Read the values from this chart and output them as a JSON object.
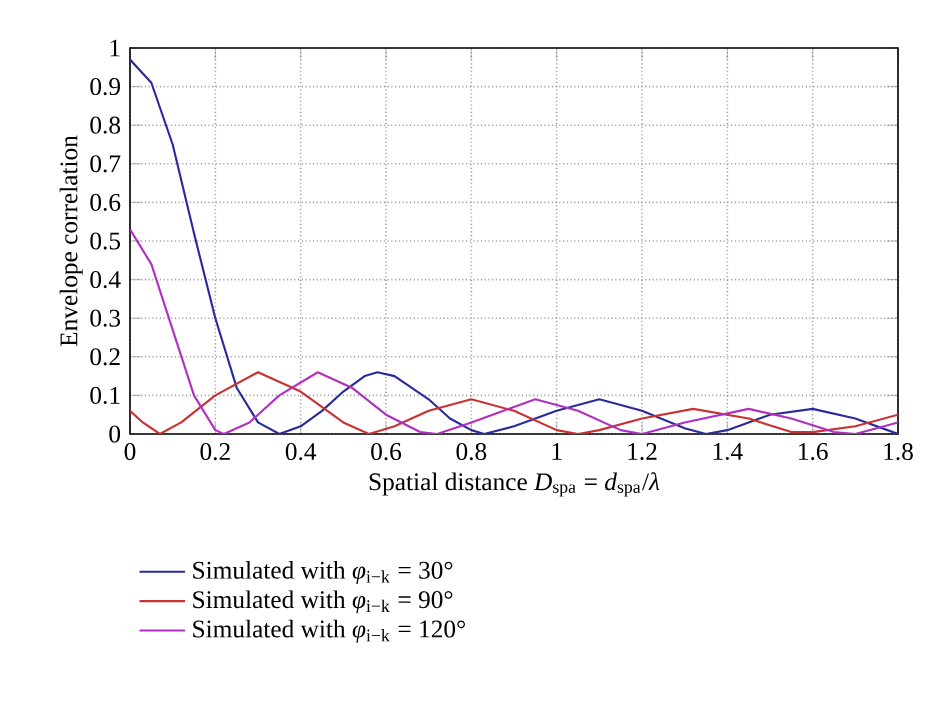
{
  "chart_data": {
    "type": "line",
    "xlabel": "Spatial distance *D*$_{spa}$ = *d*$_{spa}$/*λ*",
    "ylabel": "Envelope correlation",
    "xlim": [
      0,
      1.8
    ],
    "ylim": [
      0,
      1
    ],
    "xticks": [
      0,
      0.2,
      0.4,
      0.6,
      0.8,
      1,
      1.2,
      1.4,
      1.6,
      1.8
    ],
    "yticks": [
      0,
      0.1,
      0.2,
      0.3,
      0.4,
      0.5,
      0.6,
      0.7,
      0.8,
      0.9,
      1
    ],
    "grid": true,
    "legend": "bottom",
    "line_style": "solid",
    "marker": "none",
    "series": [
      {
        "name": "Simulated with *φ*$_{i−k}$ = 30°",
        "color": "#2a2a9c",
        "x": [
          0,
          0.05,
          0.1,
          0.15,
          0.2,
          0.25,
          0.3,
          0.35,
          0.4,
          0.45,
          0.5,
          0.55,
          0.58,
          0.62,
          0.7,
          0.75,
          0.8,
          0.83,
          0.9,
          1.0,
          1.1,
          1.2,
          1.3,
          1.35,
          1.4,
          1.5,
          1.6,
          1.7,
          1.8
        ],
        "values": [
          0.97,
          0.91,
          0.75,
          0.52,
          0.3,
          0.12,
          0.03,
          0,
          0.02,
          0.06,
          0.11,
          0.15,
          0.16,
          0.15,
          0.09,
          0.04,
          0.01,
          0,
          0.02,
          0.06,
          0.09,
          0.06,
          0.015,
          0,
          0.01,
          0.05,
          0.065,
          0.04,
          0
        ]
      },
      {
        "name": "Simulated with *φ*$_{i−k}$ = 90°",
        "color": "#c83232",
        "x": [
          0,
          0.03,
          0.07,
          0.12,
          0.2,
          0.3,
          0.4,
          0.5,
          0.56,
          0.62,
          0.7,
          0.8,
          0.9,
          1.0,
          1.05,
          1.1,
          1.2,
          1.32,
          1.45,
          1.55,
          1.6,
          1.7,
          1.8
        ],
        "values": [
          0.06,
          0.03,
          0,
          0.03,
          0.1,
          0.16,
          0.11,
          0.03,
          0,
          0.02,
          0.06,
          0.09,
          0.06,
          0.01,
          0,
          0.01,
          0.04,
          0.065,
          0.04,
          0.005,
          0.005,
          0.02,
          0.05
        ]
      },
      {
        "name": "Simulated with *φ*$_{i−k}$ = 120°",
        "color": "#b030c0",
        "x": [
          0,
          0.05,
          0.1,
          0.15,
          0.2,
          0.22,
          0.28,
          0.35,
          0.44,
          0.52,
          0.6,
          0.68,
          0.72,
          0.8,
          0.95,
          1.05,
          1.15,
          1.2,
          1.3,
          1.45,
          1.55,
          1.65,
          1.7,
          1.8
        ],
        "values": [
          0.53,
          0.44,
          0.27,
          0.1,
          0.01,
          0,
          0.03,
          0.1,
          0.16,
          0.12,
          0.05,
          0.005,
          0,
          0.03,
          0.09,
          0.06,
          0.01,
          0,
          0.03,
          0.065,
          0.04,
          0.005,
          0,
          0.03
        ]
      }
    ]
  }
}
